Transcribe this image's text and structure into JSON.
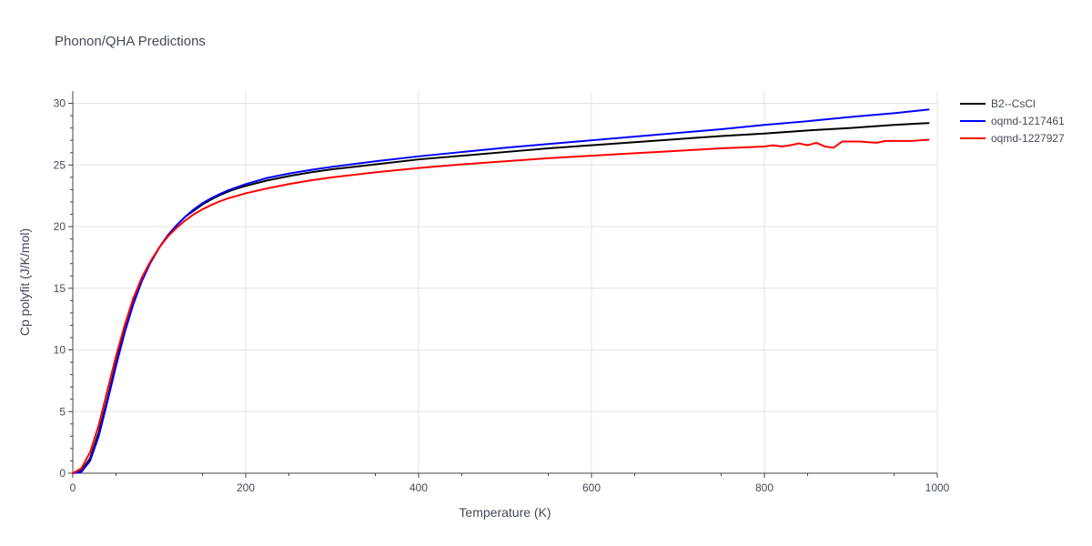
{
  "chart_data": {
    "type": "line",
    "title": "Phonon/QHA Predictions",
    "xlabel": "Temperature (K)",
    "ylabel": "Cp polyfit (J/K/mol)",
    "xlim": [
      0,
      1000
    ],
    "ylim": [
      0,
      31
    ],
    "xticks": [
      0,
      200,
      400,
      600,
      800,
      1000
    ],
    "yticks": [
      0,
      5,
      10,
      15,
      20,
      25,
      30
    ],
    "grid": true,
    "legend_position": "top-right",
    "series": [
      {
        "name": "B2--CsCl",
        "color": "#000000",
        "x": [
          0,
          10,
          20,
          30,
          40,
          50,
          60,
          70,
          80,
          90,
          100,
          110,
          120,
          130,
          140,
          150,
          160,
          170,
          180,
          190,
          200,
          225,
          250,
          275,
          300,
          350,
          400,
          450,
          500,
          550,
          600,
          650,
          700,
          750,
          800,
          850,
          900,
          950,
          990
        ],
        "values": [
          0,
          0.2,
          1.2,
          3.3,
          6.0,
          8.9,
          11.6,
          13.9,
          15.7,
          17.1,
          18.3,
          19.3,
          20.1,
          20.8,
          21.3,
          21.8,
          22.2,
          22.55,
          22.85,
          23.1,
          23.3,
          23.75,
          24.1,
          24.4,
          24.65,
          25.05,
          25.45,
          25.75,
          26.05,
          26.35,
          26.6,
          26.85,
          27.1,
          27.35,
          27.55,
          27.8,
          28.0,
          28.25,
          28.4
        ]
      },
      {
        "name": "oqmd-1217461",
        "color": "#0000ff",
        "x": [
          0,
          10,
          20,
          30,
          40,
          50,
          60,
          70,
          80,
          90,
          100,
          110,
          120,
          130,
          140,
          150,
          160,
          170,
          180,
          190,
          200,
          225,
          250,
          275,
          300,
          350,
          400,
          450,
          500,
          550,
          600,
          650,
          700,
          750,
          800,
          850,
          900,
          950,
          990
        ],
        "values": [
          0,
          0.1,
          1.0,
          3.0,
          5.8,
          8.7,
          11.4,
          13.7,
          15.6,
          17.1,
          18.3,
          19.3,
          20.1,
          20.8,
          21.4,
          21.9,
          22.3,
          22.65,
          22.95,
          23.2,
          23.45,
          23.95,
          24.3,
          24.6,
          24.85,
          25.3,
          25.7,
          26.05,
          26.4,
          26.7,
          27.0,
          27.3,
          27.6,
          27.9,
          28.25,
          28.55,
          28.9,
          29.2,
          29.5
        ]
      },
      {
        "name": "oqmd-1227927",
        "color": "#ff0000",
        "x": [
          0,
          10,
          20,
          30,
          40,
          50,
          60,
          70,
          80,
          90,
          100,
          110,
          120,
          130,
          140,
          150,
          160,
          170,
          180,
          190,
          200,
          225,
          250,
          275,
          300,
          350,
          400,
          450,
          500,
          550,
          600,
          650,
          700,
          750,
          800,
          810,
          820,
          830,
          840,
          850,
          860,
          870,
          880,
          890,
          900,
          910,
          920,
          930,
          940,
          950,
          960,
          970,
          980,
          990
        ],
        "values": [
          0,
          0.4,
          1.7,
          3.9,
          6.7,
          9.5,
          12.0,
          14.2,
          15.9,
          17.2,
          18.3,
          19.2,
          19.9,
          20.5,
          21.0,
          21.4,
          21.75,
          22.05,
          22.3,
          22.5,
          22.7,
          23.1,
          23.45,
          23.75,
          24.0,
          24.4,
          24.75,
          25.05,
          25.3,
          25.55,
          25.75,
          25.95,
          26.15,
          26.35,
          26.5,
          26.6,
          26.5,
          26.6,
          26.75,
          26.6,
          26.8,
          26.5,
          26.4,
          26.9,
          26.9,
          26.9,
          26.85,
          26.8,
          26.95,
          26.95,
          26.95,
          26.95,
          27.0,
          27.05
        ]
      }
    ]
  }
}
